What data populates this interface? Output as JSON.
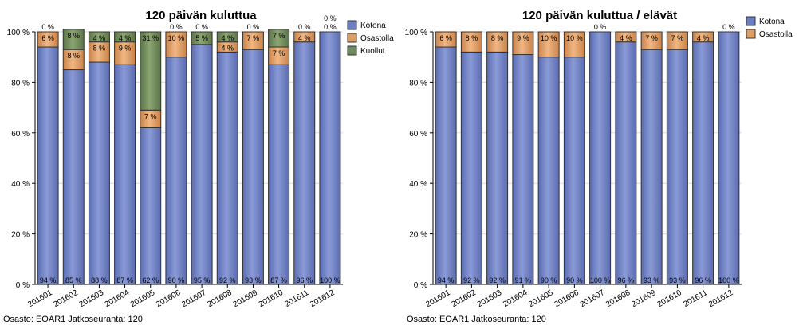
{
  "colors": {
    "kotona": "#6b7fc4",
    "osastolla": "#dd9d63",
    "kuollut": "#6f8a5c",
    "grid": "#d9d9d9"
  },
  "chart_data": [
    {
      "type": "bar",
      "stacked": true,
      "title": "120 päivän kuluttua",
      "categories": [
        "201601",
        "201602",
        "201603",
        "201604",
        "201605",
        "201606",
        "201607",
        "201608",
        "201609",
        "201610",
        "201611",
        "201612"
      ],
      "ylim": [
        0,
        100
      ],
      "yticks": [
        "0 %",
        "20 %",
        "40 %",
        "60 %",
        "80 %",
        "100 %"
      ],
      "grid": true,
      "legend": "top-right",
      "series": [
        {
          "name": "Kotona",
          "values": [
            94,
            85,
            88,
            87,
            62,
            90,
            95,
            92,
            93,
            87,
            96,
            100
          ],
          "labels": [
            "94 %",
            "85 %",
            "88 %",
            "87 %",
            "62 %",
            "90 %",
            "95 %",
            "92 %",
            "93 %",
            "87 %",
            "96 %",
            "100 %"
          ]
        },
        {
          "name": "Osastolla",
          "values": [
            6,
            8,
            8,
            9,
            7,
            10,
            0,
            4,
            7,
            7,
            4,
            0
          ],
          "labels": [
            "6 %",
            "8 %",
            "8 %",
            "9 %",
            "7 %",
            "10 %",
            "0 %",
            "4 %",
            "7 %",
            "7 %",
            "4 %",
            "0 %"
          ]
        },
        {
          "name": "Kuollut",
          "values": [
            0,
            8,
            4,
            4,
            31,
            0,
            5,
            4,
            0,
            7,
            0,
            0
          ],
          "labels": [
            "0 %",
            "8 %",
            "4 %",
            "4 %",
            "31 %",
            "0 %",
            "5 %",
            "4 %",
            "0 %",
            "7 %",
            "0 %",
            "0 %"
          ]
        }
      ],
      "footer": "Osasto: EOAR1 Jatkoseuranta: 120"
    },
    {
      "type": "bar",
      "stacked": true,
      "title": "120 päivän kuluttua / elävät",
      "categories": [
        "201601",
        "201602",
        "201603",
        "201604",
        "201605",
        "201606",
        "201607",
        "201608",
        "201609",
        "201610",
        "201611",
        "201612"
      ],
      "ylim": [
        0,
        100
      ],
      "yticks": [
        "0 %",
        "20 %",
        "40 %",
        "60 %",
        "80 %",
        "100 %"
      ],
      "grid": true,
      "legend": "top-right",
      "series": [
        {
          "name": "Kotona",
          "values": [
            94,
            92,
            92,
            91,
            90,
            90,
            100,
            96,
            93,
            93,
            96,
            100
          ],
          "labels": [
            "94 %",
            "92 %",
            "92 %",
            "91 %",
            "90 %",
            "90 %",
            "100 %",
            "96 %",
            "93 %",
            "93 %",
            "96 %",
            "100 %"
          ]
        },
        {
          "name": "Osastolla",
          "values": [
            6,
            8,
            8,
            9,
            10,
            10,
            0,
            4,
            7,
            7,
            4,
            0
          ],
          "labels": [
            "6 %",
            "8 %",
            "8 %",
            "9 %",
            "10 %",
            "10 %",
            "0 %",
            "4 %",
            "7 %",
            "7 %",
            "4 %",
            "0 %"
          ]
        }
      ],
      "footer": "Osasto: EOAR1 Jatkoseuranta: 120"
    }
  ]
}
